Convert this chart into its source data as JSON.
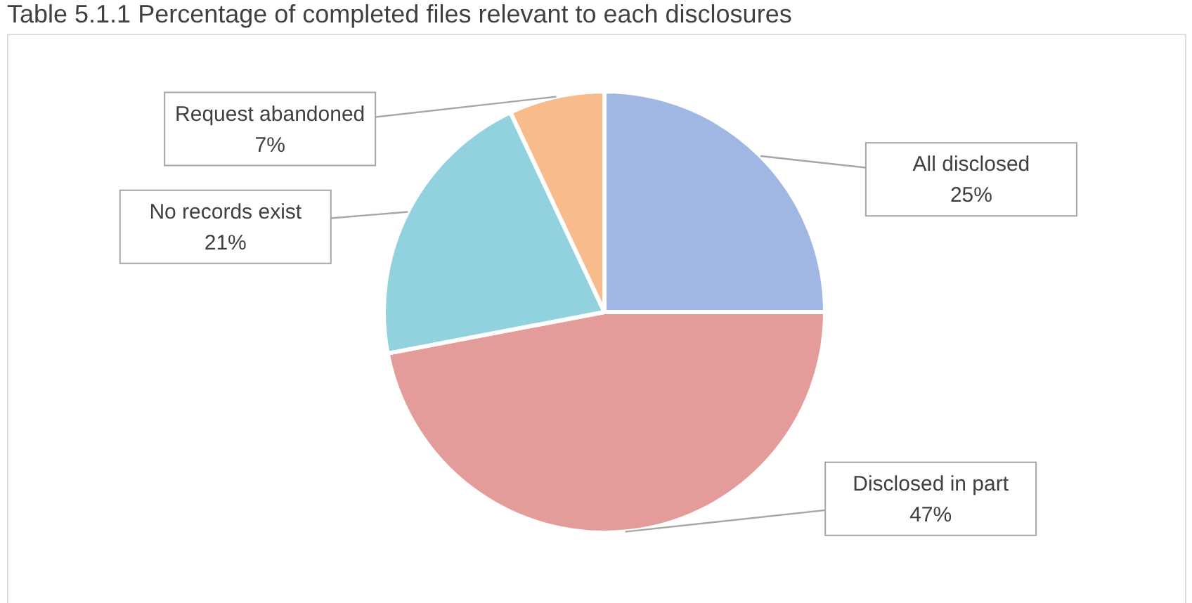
{
  "chart_data": {
    "type": "pie",
    "title": "Table 5.1.1 Percentage of completed files relevant to each disclosures",
    "categories": [
      "All disclosed",
      "Disclosed in part",
      "No records exist",
      "Request abandoned"
    ],
    "values": [
      25,
      47,
      21,
      7
    ],
    "value_labels": [
      "25%",
      "47%",
      "21%",
      "7%"
    ],
    "colors": [
      "#9fb7e2",
      "#e49c9a",
      "#92d2df",
      "#f7bb8c"
    ],
    "legend": false
  }
}
